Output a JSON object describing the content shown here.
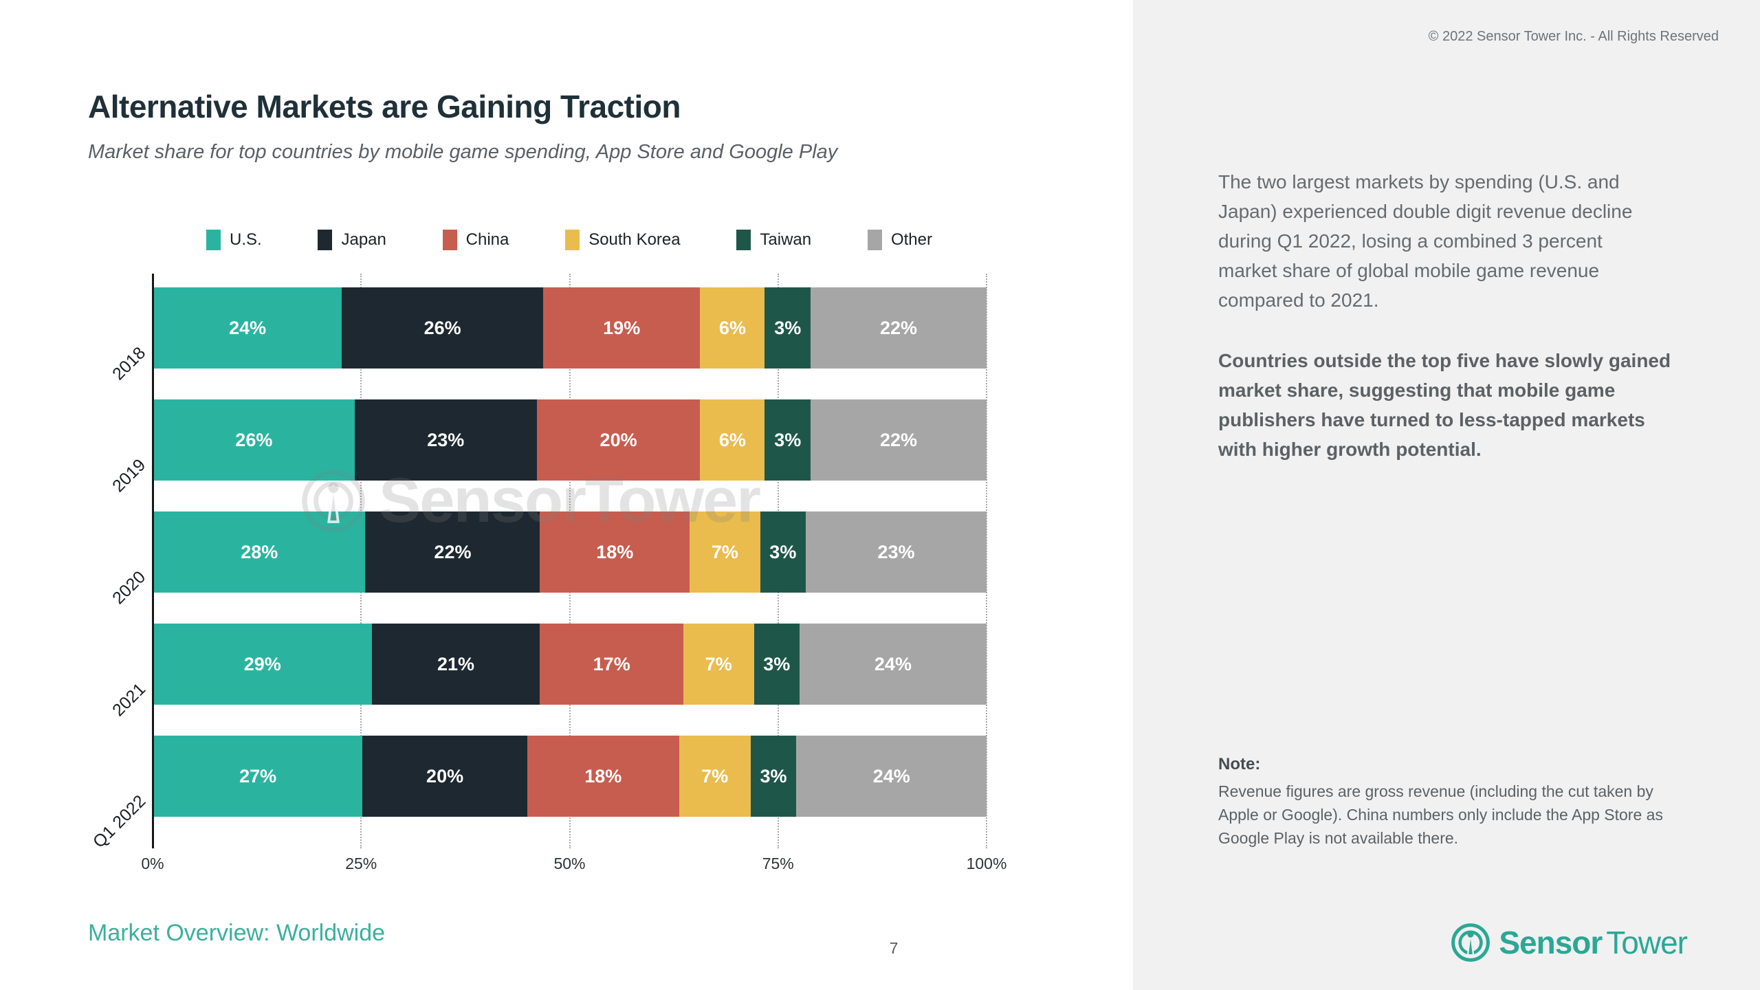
{
  "slide": {
    "title": "Alternative Markets are Gaining Traction",
    "subtitle": "Market share for top countries by mobile game spending, App Store and Google Play",
    "copyright": "© 2022 Sensor Tower Inc. - All Rights Reserved",
    "footer_left": "Market Overview: Worldwide",
    "page_number": "7"
  },
  "chart_data": {
    "type": "bar",
    "orientation": "horizontal",
    "stacked": true,
    "categories": [
      "2018",
      "2019",
      "2020",
      "2021",
      "Q1 2022"
    ],
    "series": [
      {
        "name": "U.S.",
        "color": "#2ab4a0",
        "values": [
          24,
          26,
          28,
          29,
          27
        ]
      },
      {
        "name": "Japan",
        "color": "#1e2830",
        "values": [
          26,
          23,
          22,
          21,
          20
        ]
      },
      {
        "name": "China",
        "color": "#c75d4f",
        "values": [
          19,
          20,
          18,
          17,
          18
        ]
      },
      {
        "name": "South Korea",
        "color": "#eabc4e",
        "values": [
          6,
          6,
          7,
          7,
          7
        ]
      },
      {
        "name": "Taiwan",
        "color": "#1e574a",
        "values": [
          3,
          3,
          3,
          3,
          3
        ]
      },
      {
        "name": "Other",
        "color": "#a6a6a6",
        "values": [
          22,
          22,
          23,
          24,
          24
        ]
      }
    ],
    "x_ticks": [
      "0%",
      "25%",
      "50%",
      "75%",
      "100%"
    ],
    "xlim": [
      0,
      100
    ],
    "value_label_format": "{v}%",
    "legend_position": "top",
    "grid": "dotted-vertical-at-25-50-75-100"
  },
  "panel": {
    "paragraph_1": "The two largest markets by spending (U.S. and Japan) experienced double digit revenue decline during Q1 2022, losing a combined 3 percent market share of global mobile game revenue compared to 2021.",
    "paragraph_2": "Countries outside the top five have slowly gained market share, suggesting that mobile game publishers have turned to less-tapped markets with higher growth potential.",
    "note_label": "Note:",
    "note_text": "Revenue figures are gross revenue (including the cut taken by Apple or Google). China numbers only include the App Store as Google Play is not available there.",
    "logo_sensor": "Sensor",
    "logo_tower": "Tower"
  },
  "watermark": {
    "text": "SensorTower"
  },
  "colors": {
    "brand_teal": "#2aa894",
    "footer_teal": "#39b09e",
    "title_dark": "#1f3039",
    "panel_bg": "#f1f1f2",
    "body_text": "#666b6e",
    "gridline": "#a8a8a8"
  }
}
